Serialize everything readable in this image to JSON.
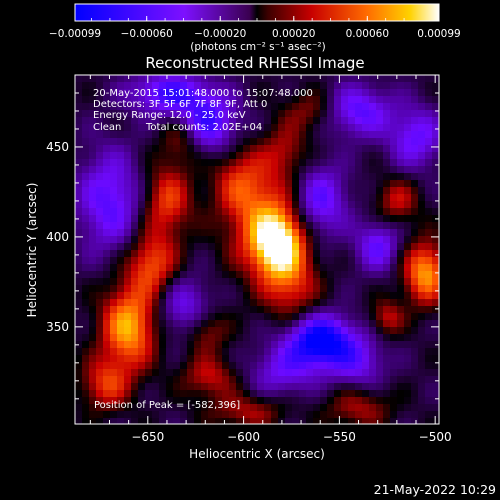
{
  "chart_data": {
    "type": "heatmap",
    "title": "Reconstructed RHESSI Image",
    "xlabel": "Heliocentric X (arcsec)",
    "ylabel": "Heliocentric Y (arcsec)",
    "xlim": [
      -688,
      -498
    ],
    "ylim": [
      296,
      490
    ],
    "x_ticks": [
      -650,
      -600,
      -550,
      -500
    ],
    "y_ticks": [
      350,
      400,
      450
    ],
    "colorbar": {
      "range": [
        -0.00099,
        0.00099
      ],
      "tick_values": [
        -0.00099,
        -0.0006,
        -0.0002,
        0.0002,
        0.0006,
        0.00099
      ],
      "tick_labels": [
        "-0.00099",
        "-0.00060",
        "-0.00020",
        "0.00020",
        "0.00060",
        "0.00099"
      ],
      "units_label": "(photons cm⁻² s⁻¹ asec⁻²)"
    },
    "peak": [
      -582,
      396
    ],
    "blobs": [
      {
        "x": -582,
        "y": 396,
        "sx": 9,
        "sy": 12,
        "amp": 1.0
      },
      {
        "x": -590,
        "y": 410,
        "sx": 14,
        "sy": 22,
        "amp": 0.55
      },
      {
        "x": -575,
        "y": 372,
        "sx": 10,
        "sy": 14,
        "amp": 0.45
      },
      {
        "x": -603,
        "y": 432,
        "sx": 10,
        "sy": 14,
        "amp": 0.35
      },
      {
        "x": -578,
        "y": 448,
        "sx": 8,
        "sy": 10,
        "amp": 0.3
      },
      {
        "x": -660,
        "y": 350,
        "sx": 10,
        "sy": 16,
        "amp": 0.85
      },
      {
        "x": -648,
        "y": 385,
        "sx": 9,
        "sy": 12,
        "amp": 0.6
      },
      {
        "x": -640,
        "y": 420,
        "sx": 9,
        "sy": 14,
        "amp": 0.55
      },
      {
        "x": -632,
        "y": 455,
        "sx": 8,
        "sy": 10,
        "amp": 0.45
      },
      {
        "x": -672,
        "y": 318,
        "sx": 9,
        "sy": 10,
        "amp": 0.5
      },
      {
        "x": -620,
        "y": 348,
        "sx": 8,
        "sy": 9,
        "amp": 0.4
      },
      {
        "x": -618,
        "y": 322,
        "sx": 10,
        "sy": 8,
        "amp": 0.4
      },
      {
        "x": -598,
        "y": 303,
        "sx": 14,
        "sy": 7,
        "amp": 0.35
      },
      {
        "x": -540,
        "y": 305,
        "sx": 12,
        "sy": 8,
        "amp": 0.35
      },
      {
        "x": -505,
        "y": 380,
        "sx": 8,
        "sy": 12,
        "amp": 0.8
      },
      {
        "x": -520,
        "y": 420,
        "sx": 8,
        "sy": 9,
        "amp": 0.4
      },
      {
        "x": -525,
        "y": 355,
        "sx": 6,
        "sy": 7,
        "amp": 0.4
      },
      {
        "x": -565,
        "y": 470,
        "sx": 10,
        "sy": 8,
        "amp": 0.3
      },
      {
        "x": -560,
        "y": 342,
        "sx": 12,
        "sy": 10,
        "amp": -1.0
      },
      {
        "x": -620,
        "y": 463,
        "sx": 12,
        "sy": 12,
        "amp": -0.7
      },
      {
        "x": -640,
        "y": 480,
        "sx": 14,
        "sy": 8,
        "amp": -0.6
      },
      {
        "x": -560,
        "y": 420,
        "sx": 10,
        "sy": 14,
        "amp": -0.55
      },
      {
        "x": -540,
        "y": 470,
        "sx": 12,
        "sy": 10,
        "amp": -0.55
      },
      {
        "x": -670,
        "y": 420,
        "sx": 12,
        "sy": 20,
        "amp": -0.55
      },
      {
        "x": -630,
        "y": 360,
        "sx": 10,
        "sy": 12,
        "amp": -0.45
      },
      {
        "x": -510,
        "y": 455,
        "sx": 10,
        "sy": 12,
        "amp": -0.5
      },
      {
        "x": -530,
        "y": 395,
        "sx": 8,
        "sy": 10,
        "amp": -0.5
      },
      {
        "x": -540,
        "y": 330,
        "sx": 10,
        "sy": 10,
        "amp": -0.4
      },
      {
        "x": -580,
        "y": 325,
        "sx": 12,
        "sy": 10,
        "amp": -0.4
      }
    ],
    "base_level": -0.1
  },
  "annotation": {
    "line1": "20-May-2015 15:01:48.000 to 15:07:48.000",
    "line2": "Detectors: 3F 5F 6F 7F 8F 9F, Att 0",
    "line3": "Energy Range: 12.0 - 25.0 keV",
    "line4_a": "Clean",
    "line4_b": "Total counts: 2.02E+04",
    "peak_text": "Position of Peak = [-582,396]"
  },
  "footer": {
    "timestamp": "21-May-2022 10:29"
  }
}
